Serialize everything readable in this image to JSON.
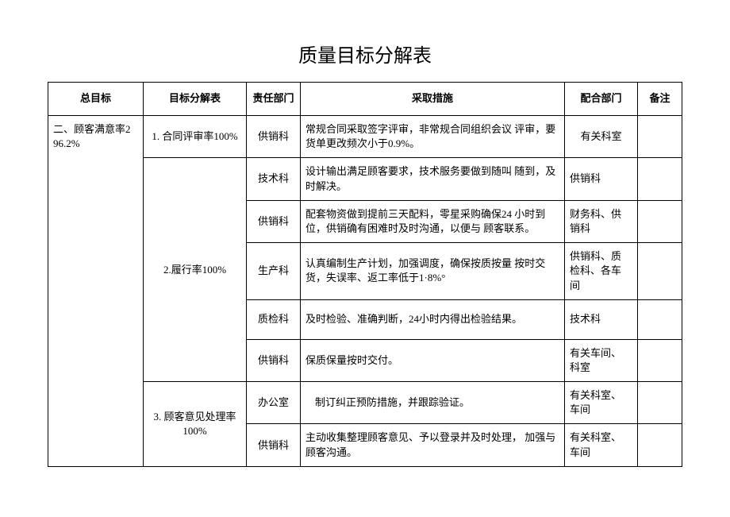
{
  "title": "质量目标分解表",
  "headers": {
    "goal": "总目标",
    "decomp": "目标分解表",
    "dept": "责任部门",
    "measure": "采取措施",
    "coop": "配合部门",
    "remark": "备注"
  },
  "goal_main": "二、顾客满意率2 96.2%",
  "decomp1": "1. 合同评审率100%",
  "decomp2": "2.履行率100%",
  "decomp3": "3. 顾客意见处理率 100%",
  "rows": {
    "r1": {
      "dept": "供销科",
      "measure": "常规合同采取签字评审，非常规合同组织会议 评审，要货单更改频次小于0.9%。",
      "coop": "有关科室"
    },
    "r2": {
      "dept": "技术科",
      "measure": "设计输出满足顾客要求，技术服务要做到随叫 随到，及时解决。",
      "coop": "供销科"
    },
    "r3": {
      "dept": "供销科",
      "measure": "配套物资做到提前三天配料，零星采购确保24 小时到位，供销确有困难时及时沟通，以便与 顾客联系。",
      "coop": "财务科、供 销科"
    },
    "r4": {
      "dept": "生产科",
      "measure": "认真编制生产计划，加强调度，确保按质按量 按时交货，失误率、返工率低于1·8%°",
      "coop": "供销科、质 检科、各车 间"
    },
    "r5": {
      "dept": "质检科",
      "measure": "及时检验、准确判断，24小时内得出检验结果。",
      "coop": "技术科"
    },
    "r6": {
      "dept": "供销科",
      "measure": "保质保量按时交付。",
      "coop": "有关车间、 科室"
    },
    "r7": {
      "dept": "办公室",
      "measure": "制订纠正预防措施，并跟踪验证。",
      "coop": "有关科室、 车间"
    },
    "r8": {
      "dept": "供销科",
      "measure": "主动收集整理顾客意见、予以登录并及时处理， 加强与顾客沟通。",
      "coop": "有关科室、 车间"
    }
  }
}
